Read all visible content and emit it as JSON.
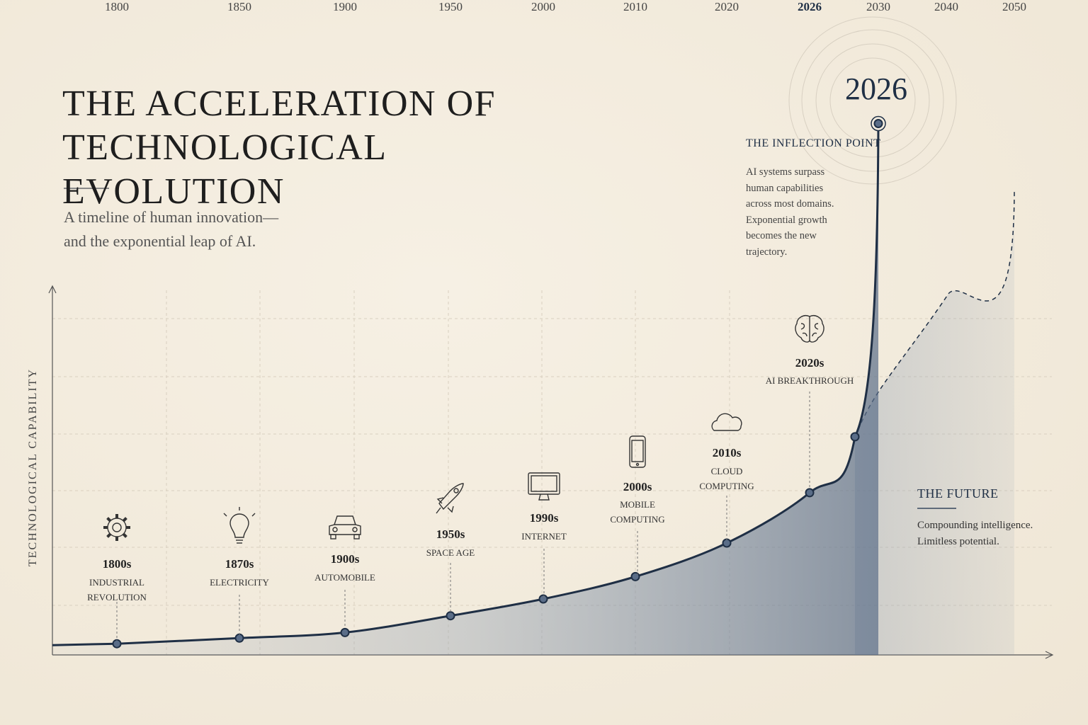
{
  "chart_data": {
    "type": "line",
    "title": "THE ACCELERATION OF TECHNOLOGICAL EVOLUTION",
    "subtitle": "A timeline of human innovation—\nand the exponential leap of AI.",
    "y_label": "TECHNOLOGICAL CAPABILITY",
    "categories": [
      "1800",
      "1850",
      "1900",
      "1950",
      "2000",
      "2010",
      "2020",
      "2026",
      null,
      "2030",
      "2040",
      "2050"
    ],
    "values": [
      0.2,
      0.3,
      0.4,
      0.7,
      1,
      1.4,
      2,
      2.9,
      3.9,
      9.5,
      null,
      null
    ],
    "projection_values": [
      null,
      null,
      null,
      null,
      null,
      null,
      null,
      null,
      3.9,
      4.7,
      6.4,
      8.3
    ],
    "ylim": [
      0,
      10
    ],
    "color": "#1f2f45",
    "marker_label": "2026",
    "milestones": [
      {
        "label": "1800s",
        "name": "INDUSTRIAL\nREVOLUTION"
      },
      {
        "label": "1870s",
        "name": "ELECTRICITY"
      },
      {
        "label": "1900s",
        "name": "AUTOMOBILE"
      },
      {
        "label": "1950s",
        "name": "SPACE AGE"
      },
      {
        "label": "1990s",
        "name": "INTERNET"
      },
      {
        "label": "2000s",
        "name": "MOBILE\nCOMPUTING"
      },
      {
        "label": "2010s",
        "name": "CLOUD\nCOMPUTING"
      },
      {
        "label": "2020s",
        "name": "AI BREAKTHROUGH"
      }
    ],
    "inflection": {
      "title": "THE INFLECTION POINT",
      "text": "AI systems surpass\nhuman capabilities\nacross most domains.\nExponential growth\nbecomes the new\ntrajectory."
    },
    "future": {
      "title": "THE FUTURE",
      "text": "Compounding intelligence.\nLimitless potential."
    }
  }
}
